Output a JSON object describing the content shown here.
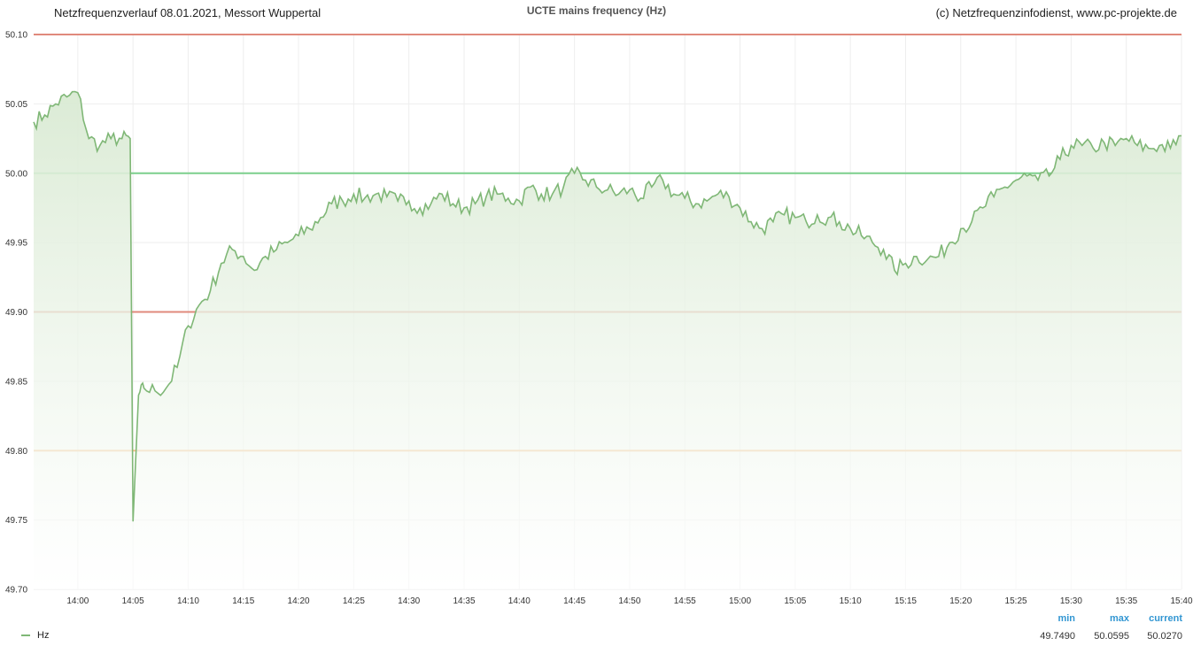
{
  "header": {
    "left": "Netzfrequenzverlauf 08.01.2021, Messort Wuppertal",
    "center": "UCTE mains frequency (Hz)",
    "right": "(c) Netzfrequenzinfodienst, www.pc-projekte.de"
  },
  "colors": {
    "series": "#7fb776",
    "fill": "#e8f2e4",
    "red_line": "#e0897c",
    "green_line": "#7ccf8c",
    "orange_line": "#f7c089",
    "grid": "#eeeeee",
    "stat_header": "#3296d2"
  },
  "legend": {
    "series_label": "Hz",
    "stats": [
      {
        "header": "min",
        "value": "49.7490"
      },
      {
        "header": "max",
        "value": "50.0595"
      },
      {
        "header": "current",
        "value": "50.0270"
      }
    ]
  },
  "chart_data": {
    "type": "area",
    "title": "UCTE mains frequency (Hz)",
    "xlabel": "",
    "ylabel": "",
    "x_unit": "time",
    "xlim": [
      "13:56",
      "15:40"
    ],
    "ylim": [
      49.7,
      50.1
    ],
    "y_ticks": [
      "50.10",
      "50.05",
      "50.00",
      "49.95",
      "49.90",
      "49.85",
      "49.80",
      "49.75",
      "49.70"
    ],
    "x_ticks": [
      "14:00",
      "14:05",
      "14:10",
      "14:15",
      "14:20",
      "14:25",
      "14:30",
      "14:35",
      "14:40",
      "14:45",
      "14:50",
      "14:55",
      "15:00",
      "15:05",
      "15:10",
      "15:15",
      "15:20",
      "15:25",
      "15:30",
      "15:35",
      "15:40"
    ],
    "grid": true,
    "legend_position": "bottom-left",
    "reference_lines": [
      {
        "y": 50.1,
        "color": "red"
      },
      {
        "y": 50.0,
        "color": "green"
      },
      {
        "y": 49.9,
        "color": "red"
      },
      {
        "y": 49.8,
        "color": "orange"
      }
    ],
    "series": [
      {
        "name": "Hz",
        "x": [
          "13:56",
          "13:57",
          "13:58",
          "13:59",
          "14:00",
          "14:01",
          "14:02",
          "14:03",
          "14:04",
          "14:04:45",
          "14:05",
          "14:05:30",
          "14:06",
          "14:07",
          "14:08",
          "14:09",
          "14:10",
          "14:11",
          "14:12",
          "14:13",
          "14:14",
          "14:15",
          "14:16",
          "14:17",
          "14:18",
          "14:19",
          "14:20",
          "14:21",
          "14:22",
          "14:23",
          "14:24",
          "14:25",
          "14:26",
          "14:27",
          "14:28",
          "14:29",
          "14:30",
          "14:31",
          "14:32",
          "14:33",
          "14:34",
          "14:35",
          "14:36",
          "14:37",
          "14:38",
          "14:39",
          "14:40",
          "14:41",
          "14:42",
          "14:43",
          "14:44",
          "14:45",
          "14:46",
          "14:47",
          "14:48",
          "14:49",
          "14:50",
          "14:51",
          "14:52",
          "14:53",
          "14:54",
          "14:55",
          "14:56",
          "14:57",
          "14:58",
          "14:59",
          "15:00",
          "15:01",
          "15:02",
          "15:03",
          "15:04",
          "15:05",
          "15:06",
          "15:07",
          "15:08",
          "15:09",
          "15:10",
          "15:11",
          "15:12",
          "15:13",
          "15:14",
          "15:15",
          "15:16",
          "15:17",
          "15:18",
          "15:19",
          "15:20",
          "15:21",
          "15:22",
          "15:23",
          "15:24",
          "15:25",
          "15:26",
          "15:27",
          "15:28",
          "15:29",
          "15:30",
          "15:31",
          "15:32",
          "15:33",
          "15:34",
          "15:35",
          "15:36",
          "15:37",
          "15:38",
          "15:39",
          "15:40"
        ],
        "values": [
          50.037,
          50.042,
          50.05,
          50.055,
          50.058,
          50.025,
          50.02,
          50.025,
          50.025,
          50.025,
          49.749,
          49.84,
          49.845,
          49.843,
          49.845,
          49.86,
          49.89,
          49.905,
          49.915,
          49.935,
          49.945,
          49.94,
          49.93,
          49.94,
          49.945,
          49.95,
          49.955,
          49.96,
          49.968,
          49.978,
          49.98,
          49.985,
          49.982,
          49.985,
          49.983,
          49.98,
          49.98,
          49.975,
          49.978,
          49.985,
          49.978,
          49.975,
          49.978,
          49.983,
          49.985,
          49.982,
          49.98,
          49.99,
          49.985,
          49.985,
          49.99,
          50.0,
          49.995,
          49.99,
          49.988,
          49.985,
          49.988,
          49.982,
          49.99,
          49.995,
          49.985,
          49.982,
          49.978,
          49.98,
          49.985,
          49.983,
          49.975,
          49.965,
          49.96,
          49.965,
          49.97,
          49.968,
          49.965,
          49.97,
          49.968,
          49.965,
          49.96,
          49.955,
          49.95,
          49.945,
          49.93,
          49.935,
          49.94,
          49.938,
          49.94,
          49.95,
          49.96,
          49.965,
          49.975,
          49.983,
          49.99,
          49.995,
          49.998,
          49.995,
          49.998,
          50.01,
          50.02,
          50.02,
          50.018,
          50.022,
          50.02,
          50.025,
          50.02,
          50.018,
          50.02,
          50.018,
          50.027
        ]
      }
    ]
  }
}
